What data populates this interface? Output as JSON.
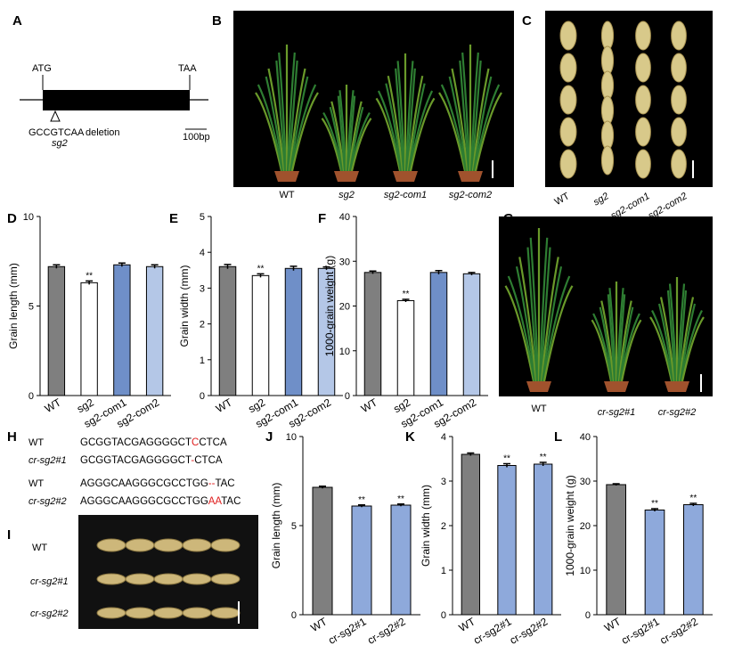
{
  "figure": {
    "letters": [
      "A",
      "B",
      "C",
      "D",
      "E",
      "F",
      "G",
      "H",
      "I",
      "J",
      "K",
      "L"
    ],
    "gene": {
      "start": "ATG",
      "stop": "TAA",
      "motif": "GCCGTCAA",
      "deletion": "deletion",
      "allele": "sg2",
      "scale": "100bp"
    },
    "photo_b": [
      "WT",
      "sg2",
      "sg2-com1",
      "sg2-com2"
    ],
    "photo_c": [
      "WT",
      "sg2",
      "sg2-com1",
      "sg2-com2"
    ],
    "photo_g": [
      "WT",
      "cr-sg2#1",
      "cr-sg2#2"
    ],
    "photo_i": [
      "WT",
      "cr-sg2#1",
      "cr-sg2#2"
    ],
    "sequences": [
      {
        "label": "WT",
        "parts": [
          {
            "text": "GCGGTACGAGGGGCT",
            "highlight": false
          },
          {
            "text": "C",
            "highlight": true
          },
          {
            "text": "CTCA",
            "highlight": false
          }
        ]
      },
      {
        "label": "cr-sg2#1",
        "parts": [
          {
            "text": "GCGGTACGAGGGGCT",
            "highlight": false
          },
          {
            "text": "-",
            "highlight": true
          },
          {
            "text": "CTCA",
            "highlight": false
          }
        ]
      },
      {
        "label": "WT",
        "parts": [
          {
            "text": "AGGGCAAGGGCGCCTGG",
            "highlight": false
          },
          {
            "text": "--",
            "highlight": true
          },
          {
            "text": "TAC",
            "highlight": false
          }
        ]
      },
      {
        "label": "cr-sg2#2",
        "parts": [
          {
            "text": "AGGGCAAGGGCGCCTGG",
            "highlight": false
          },
          {
            "text": "AA",
            "highlight": true
          },
          {
            "text": "TAC",
            "highlight": false
          }
        ]
      }
    ]
  },
  "chart_data": [
    {
      "type": "bar",
      "ylabel": "Grain length (mm)",
      "categories": [
        "WT",
        "sg2",
        "sg2-com1",
        "sg2-com2"
      ],
      "values": [
        7.2,
        6.3,
        7.3,
        7.2
      ],
      "errors": [
        0.1,
        0.1,
        0.1,
        0.1
      ],
      "colors": [
        "#7f7f7f",
        "#ffffff",
        "#6f8fc8",
        "#b4c7e7"
      ],
      "ylim": [
        0,
        10
      ],
      "yticks": [
        0,
        5,
        10
      ],
      "annotations": [
        {
          "index": 1,
          "text": "**"
        }
      ]
    },
    {
      "type": "bar",
      "ylabel": "Grain width (mm)",
      "categories": [
        "WT",
        "sg2",
        "sg2-com1",
        "sg2-com2"
      ],
      "values": [
        3.6,
        3.35,
        3.55,
        3.55
      ],
      "errors": [
        0.06,
        0.05,
        0.06,
        0.04
      ],
      "colors": [
        "#7f7f7f",
        "#ffffff",
        "#6f8fc8",
        "#b4c7e7"
      ],
      "ylim": [
        0,
        5
      ],
      "yticks": [
        0,
        1,
        2,
        3,
        4,
        5
      ],
      "annotations": [
        {
          "index": 1,
          "text": "**"
        }
      ]
    },
    {
      "type": "bar",
      "ylabel": "1000-grain weight (g)",
      "categories": [
        "WT",
        "sg2",
        "sg2-com1",
        "sg2-com2"
      ],
      "values": [
        27.5,
        21.2,
        27.5,
        27.2
      ],
      "errors": [
        0.3,
        0.3,
        0.4,
        0.3
      ],
      "colors": [
        "#7f7f7f",
        "#ffffff",
        "#6f8fc8",
        "#b4c7e7"
      ],
      "ylim": [
        0,
        40
      ],
      "yticks": [
        0,
        10,
        20,
        30,
        40
      ],
      "annotations": [
        {
          "index": 1,
          "text": "**"
        }
      ]
    },
    {
      "type": "bar",
      "ylabel": "Grain length (mm)",
      "categories": [
        "WT",
        "cr-sg2#1",
        "cr-sg2#2"
      ],
      "values": [
        7.15,
        6.1,
        6.15
      ],
      "errors": [
        0.06,
        0.06,
        0.06
      ],
      "colors": [
        "#7f7f7f",
        "#8ea9db",
        "#8ea9db"
      ],
      "ylim": [
        0,
        10
      ],
      "yticks": [
        0,
        5,
        10
      ],
      "annotations": [
        {
          "index": 1,
          "text": "**"
        },
        {
          "index": 2,
          "text": "**"
        }
      ]
    },
    {
      "type": "bar",
      "ylabel": "Grain width (mm)",
      "categories": [
        "WT",
        "cr-sg2#1",
        "cr-sg2#2"
      ],
      "values": [
        3.6,
        3.35,
        3.38
      ],
      "errors": [
        0.03,
        0.04,
        0.04
      ],
      "colors": [
        "#7f7f7f",
        "#8ea9db",
        "#8ea9db"
      ],
      "ylim": [
        0,
        4
      ],
      "yticks": [
        0,
        1,
        2,
        3,
        4
      ],
      "annotations": [
        {
          "index": 1,
          "text": "**"
        },
        {
          "index": 2,
          "text": "**"
        }
      ]
    },
    {
      "type": "bar",
      "ylabel": "1000-grain weight (g)",
      "categories": [
        "WT",
        "cr-sg2#1",
        "cr-sg2#2"
      ],
      "values": [
        29.2,
        23.5,
        24.7
      ],
      "errors": [
        0.2,
        0.3,
        0.3
      ],
      "colors": [
        "#7f7f7f",
        "#8ea9db",
        "#8ea9db"
      ],
      "ylim": [
        0,
        40
      ],
      "yticks": [
        0,
        10,
        20,
        30,
        40
      ],
      "annotations": [
        {
          "index": 1,
          "text": "**"
        },
        {
          "index": 2,
          "text": "**"
        }
      ]
    }
  ]
}
